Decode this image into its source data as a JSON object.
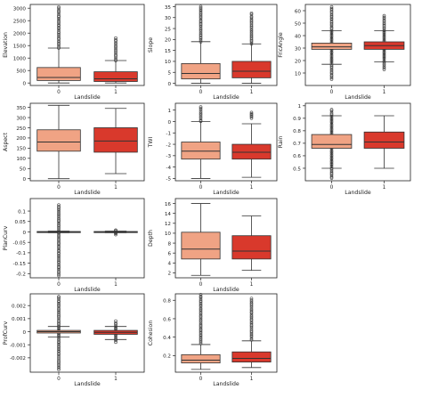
{
  "figure_caption": "",
  "chart_data": [
    {
      "type": "box",
      "ylabel": "Elevation",
      "xlabel": "Landslide",
      "categories": [
        "0",
        "1"
      ],
      "ylim": [
        -100,
        3150
      ],
      "yticks": [
        0,
        500,
        1000,
        1500,
        2000,
        2500,
        3000
      ],
      "boxes": [
        {
          "min": 0,
          "q1": 100,
          "median": 220,
          "q3": 620,
          "max": 1400,
          "outlier_range": [
            1400,
            3050
          ]
        },
        {
          "min": 0,
          "q1": 60,
          "median": 170,
          "q3": 450,
          "max": 900,
          "outlier_range": [
            900,
            1800
          ]
        }
      ]
    },
    {
      "type": "box",
      "ylabel": "Slope",
      "xlabel": "Landslide",
      "categories": [
        "0",
        "1"
      ],
      "ylim": [
        -1,
        36
      ],
      "yticks": [
        0,
        5,
        10,
        15,
        20,
        25,
        30,
        35
      ],
      "boxes": [
        {
          "min": 0,
          "q1": 2,
          "median": 4.5,
          "q3": 9,
          "max": 19,
          "outlier_range": [
            19,
            35
          ]
        },
        {
          "min": 0,
          "q1": 2.5,
          "median": 5.5,
          "q3": 10,
          "max": 18,
          "outlier_range": [
            18,
            32
          ]
        }
      ]
    },
    {
      "type": "box",
      "ylabel": "FricAngle",
      "xlabel": "Landslide",
      "categories": [
        "0",
        "1"
      ],
      "ylim": [
        0,
        65
      ],
      "yticks": [
        10,
        20,
        30,
        40,
        50,
        60
      ],
      "boxes": [
        {
          "min": 17,
          "q1": 29,
          "median": 31,
          "q3": 34,
          "max": 44,
          "outlier_range": [
            5,
            63
          ]
        },
        {
          "min": 19,
          "q1": 29,
          "median": 32,
          "q3": 35,
          "max": 44,
          "outlier_range": [
            13,
            56
          ]
        }
      ]
    },
    {
      "type": "box",
      "ylabel": "Aspect",
      "xlabel": "Landslide",
      "categories": [
        "0",
        "1"
      ],
      "ylim": [
        -10,
        370
      ],
      "yticks": [
        0,
        50,
        100,
        150,
        200,
        250,
        300,
        350
      ],
      "boxes": [
        {
          "min": 0,
          "q1": 135,
          "median": 180,
          "q3": 240,
          "max": 360
        },
        {
          "min": 25,
          "q1": 130,
          "median": 185,
          "q3": 250,
          "max": 345
        }
      ]
    },
    {
      "type": "box",
      "ylabel": "TWI",
      "xlabel": "Landslide",
      "categories": [
        "0",
        "1"
      ],
      "ylim": [
        -5.2,
        1.6
      ],
      "yticks": [
        -5,
        -4,
        -3,
        -2,
        -1,
        0,
        1
      ],
      "boxes": [
        {
          "min": -5,
          "q1": -3.3,
          "median": -2.6,
          "q3": -1.8,
          "max": 0,
          "outlier_range": [
            0,
            1.3
          ]
        },
        {
          "min": -4.9,
          "q1": -3.3,
          "median": -2.7,
          "q3": -2.0,
          "max": -0.2,
          "outlier_range": [
            0.3,
            0.8
          ]
        }
      ]
    },
    {
      "type": "box",
      "ylabel": "Rain",
      "xlabel": "Landslide",
      "categories": [
        "0",
        "1"
      ],
      "ylim": [
        0.4,
        1.02
      ],
      "yticks": [
        0.5,
        0.6,
        0.7,
        0.8,
        0.9,
        1.0
      ],
      "boxes": [
        {
          "min": 0.5,
          "q1": 0.66,
          "median": 0.69,
          "q3": 0.77,
          "max": 0.92,
          "outlier_range": [
            0.42,
            0.97
          ]
        },
        {
          "min": 0.5,
          "q1": 0.66,
          "median": 0.71,
          "q3": 0.79,
          "max": 0.92
        }
      ]
    },
    {
      "type": "box",
      "ylabel": "PlanCurv",
      "xlabel": "Landslide",
      "categories": [
        "0",
        "1"
      ],
      "ylim": [
        -0.22,
        0.16
      ],
      "yticks": [
        -0.2,
        -0.15,
        -0.1,
        -0.05,
        0.0,
        0.05,
        0.1
      ],
      "boxes": [
        {
          "min": -0.004,
          "q1": -0.002,
          "median": 0.0,
          "q3": 0.002,
          "max": 0.004,
          "outlier_range": [
            -0.21,
            0.13
          ]
        },
        {
          "min": -0.004,
          "q1": -0.002,
          "median": 0.0,
          "q3": 0.002,
          "max": 0.004,
          "outlier_range": [
            -0.012,
            0.01
          ]
        }
      ]
    },
    {
      "type": "box",
      "ylabel": "Depth",
      "xlabel": "Landslide",
      "categories": [
        "0",
        "1"
      ],
      "ylim": [
        1,
        17
      ],
      "yticks": [
        2,
        4,
        6,
        8,
        10,
        12,
        14,
        16
      ],
      "boxes": [
        {
          "min": 1.5,
          "q1": 4.8,
          "median": 6.8,
          "q3": 10.2,
          "max": 16
        },
        {
          "min": 2.5,
          "q1": 4.8,
          "median": 6.4,
          "q3": 9.5,
          "max": 13.5
        }
      ]
    },
    {
      "type": "box",
      "ylabel": "ProfCurv",
      "xlabel": "Landslide",
      "categories": [
        "0",
        "1"
      ],
      "ylim": [
        -0.0031,
        0.0029
      ],
      "yticks": [
        -0.002,
        -0.001,
        0.0,
        0.001,
        0.002
      ],
      "boxes": [
        {
          "min": -0.0004,
          "q1": -0.0001,
          "median": 0.0,
          "q3": 0.0001,
          "max": 0.0004,
          "outlier_range": [
            -0.0029,
            0.0027
          ]
        },
        {
          "min": -0.0006,
          "q1": -0.0002,
          "median": -5e-05,
          "q3": 0.0001,
          "max": 0.0004,
          "outlier_range": [
            -0.0008,
            0.0008
          ]
        }
      ]
    },
    {
      "type": "box",
      "ylabel": "Cohesion",
      "xlabel": "Landslide",
      "categories": [
        "0",
        "1"
      ],
      "ylim": [
        0.02,
        0.87
      ],
      "yticks": [
        0.2,
        0.4,
        0.6,
        0.8
      ],
      "boxes": [
        {
          "min": 0.05,
          "q1": 0.12,
          "median": 0.15,
          "q3": 0.21,
          "max": 0.32,
          "outlier_range": [
            0.33,
            0.86
          ]
        },
        {
          "min": 0.07,
          "q1": 0.13,
          "median": 0.17,
          "q3": 0.24,
          "max": 0.36,
          "outlier_range": [
            0.37,
            0.82
          ]
        }
      ]
    }
  ],
  "colors": {
    "box_0": "#f0a384",
    "box_1": "#d9392c",
    "line": "#333333",
    "outlier": "#444444"
  }
}
